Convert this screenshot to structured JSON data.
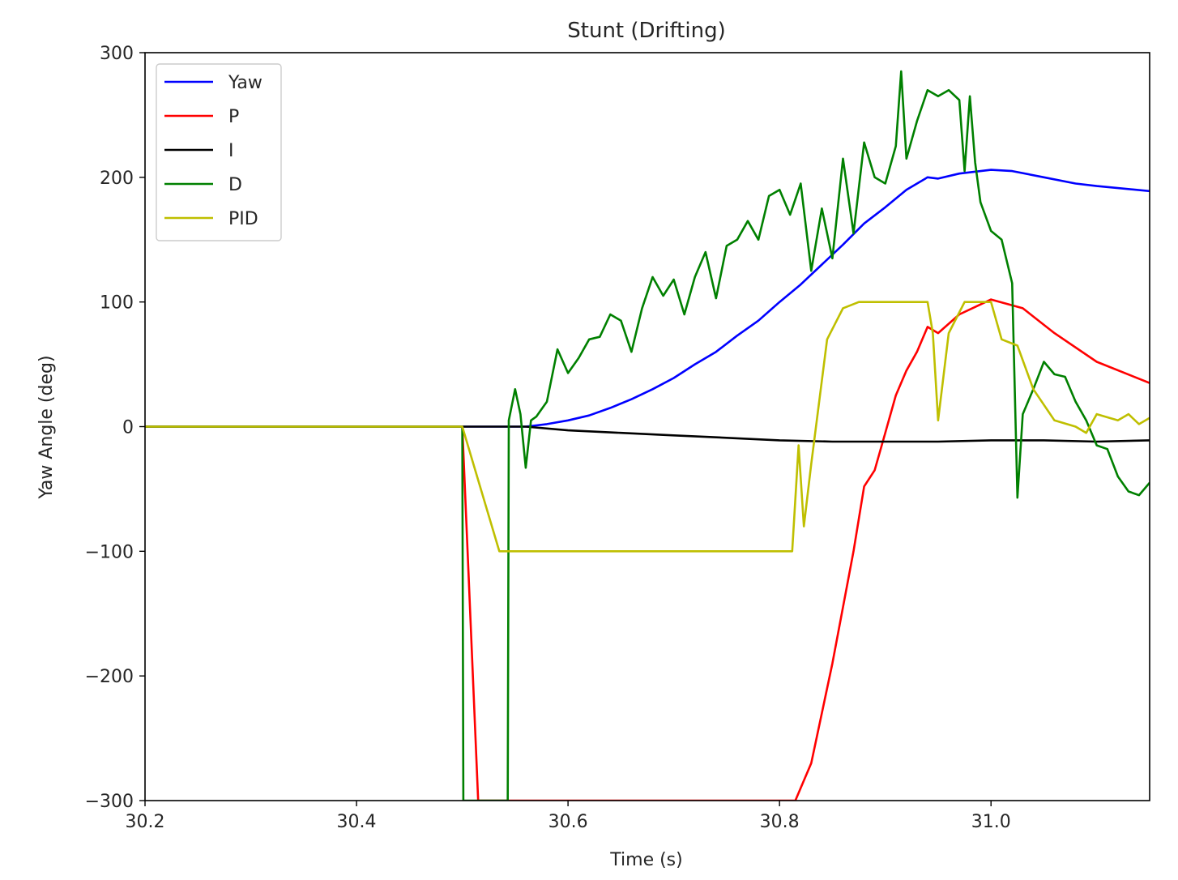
{
  "chart_data": {
    "type": "line",
    "title": "Stunt (Drifting)",
    "xlabel": "Time (s)",
    "ylabel": "Yaw Angle (deg)",
    "xlim": [
      30.2,
      31.15
    ],
    "ylim": [
      -300,
      300
    ],
    "xticks": [
      30.2,
      30.4,
      30.6,
      30.8,
      31.0
    ],
    "xtick_labels": [
      "30.2",
      "30.4",
      "30.6",
      "30.8",
      "31.0"
    ],
    "yticks": [
      -300,
      -200,
      -100,
      0,
      100,
      200,
      300
    ],
    "ytick_labels": [
      "−300",
      "−200",
      "−100",
      "0",
      "100",
      "200",
      "300"
    ],
    "grid": false,
    "legend_position": "top-left",
    "series": [
      {
        "name": "Yaw",
        "color": "#0000ff",
        "points": [
          [
            30.2,
            0
          ],
          [
            30.5,
            0
          ],
          [
            30.56,
            0
          ],
          [
            30.58,
            2
          ],
          [
            30.6,
            5
          ],
          [
            30.62,
            9
          ],
          [
            30.64,
            15
          ],
          [
            30.66,
            22
          ],
          [
            30.68,
            30
          ],
          [
            30.7,
            39
          ],
          [
            30.72,
            50
          ],
          [
            30.74,
            60
          ],
          [
            30.76,
            73
          ],
          [
            30.78,
            85
          ],
          [
            30.8,
            100
          ],
          [
            30.82,
            114
          ],
          [
            30.84,
            130
          ],
          [
            30.86,
            146
          ],
          [
            30.88,
            163
          ],
          [
            30.9,
            176
          ],
          [
            30.92,
            190
          ],
          [
            30.94,
            200
          ],
          [
            30.95,
            199
          ],
          [
            30.97,
            203
          ],
          [
            31.0,
            206
          ],
          [
            31.02,
            205
          ],
          [
            31.05,
            200
          ],
          [
            31.08,
            195
          ],
          [
            31.1,
            193
          ],
          [
            31.15,
            189
          ]
        ]
      },
      {
        "name": "P",
        "color": "#ff0000",
        "points": [
          [
            30.2,
            0
          ],
          [
            30.5,
            0
          ],
          [
            30.515,
            -300
          ],
          [
            30.815,
            -300
          ],
          [
            30.83,
            -270
          ],
          [
            30.85,
            -190
          ],
          [
            30.87,
            -100
          ],
          [
            30.88,
            -48
          ],
          [
            30.89,
            -35
          ],
          [
            30.9,
            -5
          ],
          [
            30.91,
            25
          ],
          [
            30.92,
            45
          ],
          [
            30.93,
            60
          ],
          [
            30.94,
            80
          ],
          [
            30.95,
            75
          ],
          [
            30.97,
            90
          ],
          [
            31.0,
            102
          ],
          [
            31.03,
            95
          ],
          [
            31.06,
            75
          ],
          [
            31.1,
            52
          ],
          [
            31.15,
            35
          ]
        ]
      },
      {
        "name": "I",
        "color": "#000000",
        "points": [
          [
            30.2,
            0
          ],
          [
            30.5,
            0
          ],
          [
            30.56,
            0
          ],
          [
            30.6,
            -3
          ],
          [
            30.65,
            -5
          ],
          [
            30.7,
            -7
          ],
          [
            30.75,
            -9
          ],
          [
            30.8,
            -11
          ],
          [
            30.85,
            -12
          ],
          [
            30.9,
            -12
          ],
          [
            30.95,
            -12
          ],
          [
            31.0,
            -11
          ],
          [
            31.05,
            -11
          ],
          [
            31.1,
            -12
          ],
          [
            31.15,
            -11
          ]
        ]
      },
      {
        "name": "D",
        "color": "#008000",
        "points": [
          [
            30.2,
            0
          ],
          [
            30.5,
            0
          ],
          [
            30.501,
            -300
          ],
          [
            30.543,
            -300
          ],
          [
            30.544,
            5
          ],
          [
            30.55,
            30
          ],
          [
            30.555,
            10
          ],
          [
            30.56,
            -33
          ],
          [
            30.565,
            5
          ],
          [
            30.57,
            8
          ],
          [
            30.58,
            20
          ],
          [
            30.59,
            62
          ],
          [
            30.6,
            43
          ],
          [
            30.61,
            55
          ],
          [
            30.62,
            70
          ],
          [
            30.63,
            72
          ],
          [
            30.64,
            90
          ],
          [
            30.65,
            85
          ],
          [
            30.66,
            60
          ],
          [
            30.67,
            95
          ],
          [
            30.68,
            120
          ],
          [
            30.69,
            105
          ],
          [
            30.7,
            118
          ],
          [
            30.71,
            90
          ],
          [
            30.72,
            120
          ],
          [
            30.73,
            140
          ],
          [
            30.74,
            103
          ],
          [
            30.75,
            145
          ],
          [
            30.76,
            150
          ],
          [
            30.77,
            165
          ],
          [
            30.78,
            150
          ],
          [
            30.79,
            185
          ],
          [
            30.8,
            190
          ],
          [
            30.81,
            170
          ],
          [
            30.82,
            195
          ],
          [
            30.83,
            125
          ],
          [
            30.84,
            175
          ],
          [
            30.85,
            135
          ],
          [
            30.86,
            215
          ],
          [
            30.87,
            155
          ],
          [
            30.88,
            228
          ],
          [
            30.89,
            200
          ],
          [
            30.9,
            195
          ],
          [
            30.91,
            225
          ],
          [
            30.915,
            285
          ],
          [
            30.92,
            215
          ],
          [
            30.93,
            245
          ],
          [
            30.94,
            270
          ],
          [
            30.95,
            265
          ],
          [
            30.96,
            270
          ],
          [
            30.97,
            262
          ],
          [
            30.975,
            205
          ],
          [
            30.98,
            265
          ],
          [
            30.985,
            212
          ],
          [
            30.99,
            180
          ],
          [
            31.0,
            157
          ],
          [
            31.01,
            150
          ],
          [
            31.02,
            115
          ],
          [
            31.025,
            -57
          ],
          [
            31.03,
            10
          ],
          [
            31.04,
            30
          ],
          [
            31.05,
            52
          ],
          [
            31.06,
            42
          ],
          [
            31.07,
            40
          ],
          [
            31.08,
            20
          ],
          [
            31.09,
            5
          ],
          [
            31.1,
            -15
          ],
          [
            31.11,
            -18
          ],
          [
            31.12,
            -40
          ],
          [
            31.13,
            -52
          ],
          [
            31.14,
            -55
          ],
          [
            31.15,
            -45
          ]
        ]
      },
      {
        "name": "PID",
        "color": "#bfbf00",
        "points": [
          [
            30.2,
            0
          ],
          [
            30.5,
            0
          ],
          [
            30.535,
            -100
          ],
          [
            30.812,
            -100
          ],
          [
            30.818,
            -15
          ],
          [
            30.823,
            -80
          ],
          [
            30.83,
            -30
          ],
          [
            30.845,
            70
          ],
          [
            30.86,
            95
          ],
          [
            30.875,
            100
          ],
          [
            30.94,
            100
          ],
          [
            30.945,
            75
          ],
          [
            30.95,
            5
          ],
          [
            30.96,
            75
          ],
          [
            30.975,
            100
          ],
          [
            31.0,
            100
          ],
          [
            31.01,
            70
          ],
          [
            31.025,
            65
          ],
          [
            31.04,
            30
          ],
          [
            31.06,
            5
          ],
          [
            31.08,
            0
          ],
          [
            31.09,
            -5
          ],
          [
            31.1,
            10
          ],
          [
            31.12,
            5
          ],
          [
            31.13,
            10
          ],
          [
            31.14,
            2
          ],
          [
            31.15,
            7
          ]
        ]
      }
    ]
  }
}
